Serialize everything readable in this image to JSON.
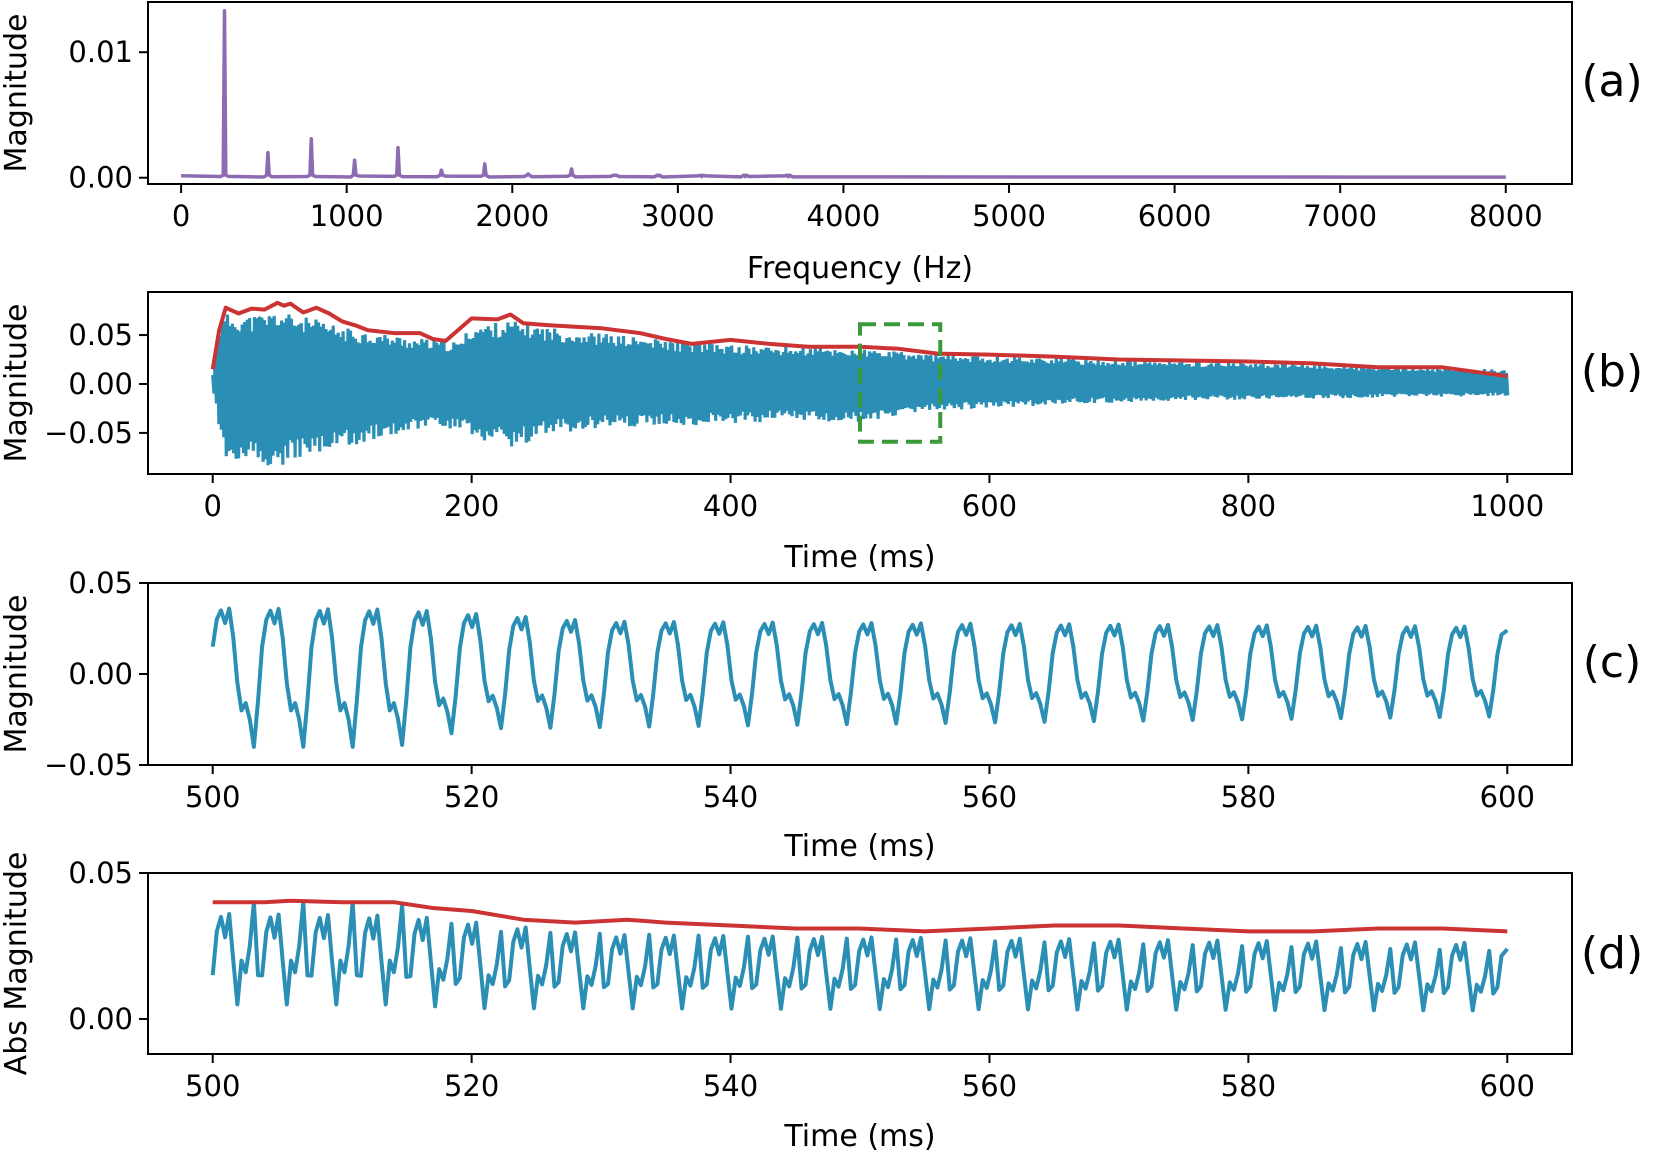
{
  "colors": {
    "spectrum": "#8c6bb1",
    "signal": "#2b8fb5",
    "envelope": "#cc3333",
    "highlight": "#3a9a3a"
  },
  "chart_data": [
    {
      "panel_label": "(a)",
      "type": "line",
      "xlabel": "Frequency (Hz)",
      "ylabel": "Magnitude",
      "xlim": [
        -200,
        8400
      ],
      "ylim": [
        -0.0005,
        0.014
      ],
      "xticks": [
        0,
        1000,
        2000,
        3000,
        4000,
        5000,
        6000,
        7000,
        8000
      ],
      "xtick_labels": [
        "0",
        "1000",
        "2000",
        "3000",
        "4000",
        "5000",
        "6000",
        "7000",
        "8000"
      ],
      "yticks": [
        0.0,
        0.01
      ],
      "ytick_labels": [
        "0.00",
        "0.01"
      ],
      "series": [
        {
          "color": "spectrum",
          "peaks_hz": [
            262,
            524,
            786,
            1048,
            1310,
            1572,
            1834,
            2096,
            2358,
            2620,
            2882,
            3144,
            3406,
            3668
          ],
          "peak_values": [
            0.0133,
            0.002,
            0.0031,
            0.0014,
            0.0024,
            0.0006,
            0.0011,
            0.0003,
            0.0007,
            0.0002,
            0.00015,
            0.0001,
            0.0001,
            8e-05
          ],
          "x_range": [
            0,
            8000
          ]
        }
      ]
    },
    {
      "panel_label": "(b)",
      "type": "line",
      "xlabel": "Time (ms)",
      "ylabel": "Magnitude",
      "xlim": [
        -50,
        1050
      ],
      "ylim": [
        -0.092,
        0.094
      ],
      "xticks": [
        0,
        200,
        400,
        600,
        800,
        1000
      ],
      "xtick_labels": [
        "0",
        "200",
        "400",
        "600",
        "800",
        "1000"
      ],
      "yticks": [
        -0.05,
        0.0,
        0.05
      ],
      "ytick_labels": [
        "−0.05",
        "0.00",
        "0.05"
      ],
      "series": [
        {
          "name": "envelope",
          "color": "envelope",
          "x": [
            0,
            5,
            10,
            20,
            30,
            40,
            50,
            55,
            60,
            70,
            80,
            90,
            100,
            110,
            120,
            140,
            160,
            170,
            180,
            200,
            220,
            230,
            240,
            260,
            300,
            330,
            350,
            370,
            400,
            430,
            460,
            480,
            500,
            530,
            560,
            600,
            650,
            700,
            750,
            800,
            850,
            900,
            950,
            1000
          ],
          "y": [
            0.015,
            0.055,
            0.078,
            0.072,
            0.077,
            0.076,
            0.083,
            0.08,
            0.082,
            0.073,
            0.078,
            0.072,
            0.064,
            0.06,
            0.055,
            0.052,
            0.052,
            0.046,
            0.044,
            0.067,
            0.066,
            0.071,
            0.062,
            0.06,
            0.057,
            0.052,
            0.046,
            0.041,
            0.045,
            0.041,
            0.038,
            0.038,
            0.038,
            0.036,
            0.031,
            0.03,
            0.028,
            0.025,
            0.024,
            0.023,
            0.021,
            0.017,
            0.017,
            0.008
          ]
        },
        {
          "name": "signal_amplitude",
          "color": "signal",
          "x": [
            0,
            5,
            10,
            30,
            50,
            60,
            80,
            100,
            150,
            190,
            200,
            220,
            230,
            260,
            300,
            350,
            400,
            450,
            500,
            550,
            600,
            650,
            700,
            750,
            800,
            850,
            900,
            950,
            1000
          ],
          "upper": [
            0.01,
            0.06,
            0.072,
            0.07,
            0.075,
            0.072,
            0.066,
            0.058,
            0.048,
            0.043,
            0.06,
            0.063,
            0.065,
            0.058,
            0.052,
            0.045,
            0.04,
            0.038,
            0.036,
            0.031,
            0.029,
            0.027,
            0.024,
            0.023,
            0.022,
            0.02,
            0.017,
            0.016,
            0.015
          ],
          "lower": [
            -0.01,
            -0.055,
            -0.08,
            -0.083,
            -0.088,
            -0.08,
            -0.075,
            -0.065,
            -0.05,
            -0.045,
            -0.058,
            -0.06,
            -0.065,
            -0.052,
            -0.046,
            -0.043,
            -0.041,
            -0.037,
            -0.04,
            -0.028,
            -0.025,
            -0.021,
            -0.019,
            -0.017,
            -0.016,
            -0.015,
            -0.014,
            -0.013,
            -0.012
          ]
        }
      ],
      "highlight_box": {
        "x": [
          500,
          562
        ],
        "y": [
          -0.059,
          0.061
        ],
        "style": "dashed",
        "color": "highlight"
      }
    },
    {
      "panel_label": "(c)",
      "type": "line",
      "xlabel": "Time (ms)",
      "ylabel": "Magnitude",
      "xlim": [
        495,
        605
      ],
      "ylim": [
        -0.05,
        0.05
      ],
      "xticks": [
        500,
        520,
        540,
        560,
        580,
        600
      ],
      "xtick_labels": [
        "500",
        "520",
        "540",
        "560",
        "580",
        "600"
      ],
      "yticks": [
        -0.05,
        0.0,
        0.05
      ],
      "ytick_labels": [
        "−0.05",
        "0.00",
        "0.05"
      ],
      "series": [
        {
          "name": "signal_zoom",
          "color": "signal",
          "x_range": [
            500,
            600
          ],
          "period_ms": 3.8168,
          "cycle_shape": [
            0.015,
            0.03,
            0.035,
            0.028,
            0.036,
            0.02,
            -0.005,
            -0.02,
            -0.016,
            -0.025,
            -0.04,
            -0.015,
            0.0
          ],
          "peak_envelope": [
            [
              500,
              1.0
            ],
            [
              515,
              0.98
            ],
            [
              530,
              0.8
            ],
            [
              600,
              0.72
            ]
          ],
          "trough_envelope": [
            [
              500,
              1.0
            ],
            [
              514,
              1.0
            ],
            [
              520,
              0.75
            ],
            [
              600,
              0.58
            ]
          ]
        }
      ]
    },
    {
      "panel_label": "(d)",
      "type": "line",
      "xlabel": "Time (ms)",
      "ylabel": "Abs Magnitude",
      "xlim": [
        495,
        605
      ],
      "ylim": [
        -0.012,
        0.05
      ],
      "xticks": [
        500,
        520,
        540,
        560,
        580,
        600
      ],
      "xtick_labels": [
        "500",
        "520",
        "540",
        "560",
        "580",
        "600"
      ],
      "yticks": [
        0.0,
        0.05
      ],
      "ytick_labels": [
        "0.00",
        "0.05"
      ],
      "series": [
        {
          "name": "envelope",
          "color": "envelope",
          "x": [
            500,
            504,
            506,
            510,
            514,
            517,
            520,
            524,
            528,
            532,
            535,
            540,
            545,
            550,
            555,
            560,
            565,
            570,
            575,
            580,
            585,
            590,
            595,
            600
          ],
          "y": [
            0.04,
            0.04,
            0.0405,
            0.04,
            0.04,
            0.038,
            0.037,
            0.034,
            0.033,
            0.034,
            0.033,
            0.032,
            0.031,
            0.031,
            0.03,
            0.031,
            0.032,
            0.032,
            0.031,
            0.03,
            0.03,
            0.031,
            0.031,
            0.03
          ]
        },
        {
          "name": "abs_signal_zoom",
          "color": "signal",
          "source": "abs of panel (c) signal",
          "x_range": [
            500,
            600
          ]
        }
      ]
    }
  ]
}
